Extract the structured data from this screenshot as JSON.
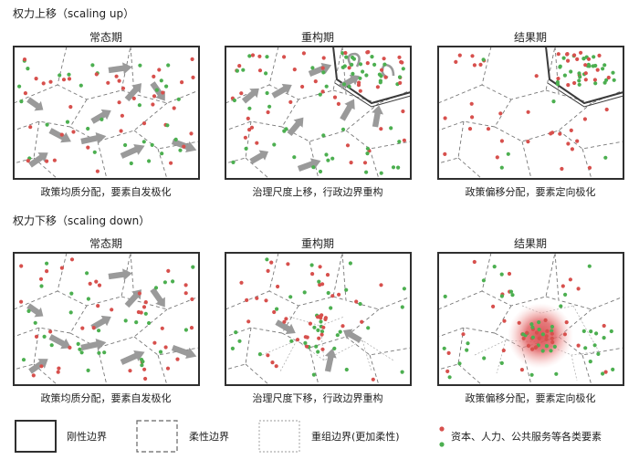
{
  "colors": {
    "red": "#d7504d",
    "green": "#4caf50",
    "arrow": "#9a9a9a",
    "rigid": "#3b3b3b",
    "flexible": "#777777",
    "reorganized": "#a8a8a8",
    "center_glow": "#e8696b"
  },
  "section_up": {
    "title": "权力上移（scaling up）",
    "panels": [
      {
        "title": "常态期",
        "caption": "政策均质分配，要素自发极化"
      },
      {
        "title": "重构期",
        "caption": "治理尺度上移，行政边界重构"
      },
      {
        "title": "结果期",
        "caption": "政策偏移分配，要素定向极化"
      }
    ]
  },
  "section_down": {
    "title": "权力下移（scaling down）",
    "panels": [
      {
        "title": "常态期",
        "caption": "政策均质分配，要素自发极化"
      },
      {
        "title": "重构期",
        "caption": "治理尺度下移，行政边界重构"
      },
      {
        "title": "结果期",
        "caption": "政策偏移分配，要素定向极化"
      }
    ]
  },
  "legend": {
    "rigid": "刚性边界",
    "flexible": "柔性边界",
    "reorganized": "重组边界(更加柔性)",
    "elements": "资本、人力、公共服务等各类要素"
  }
}
